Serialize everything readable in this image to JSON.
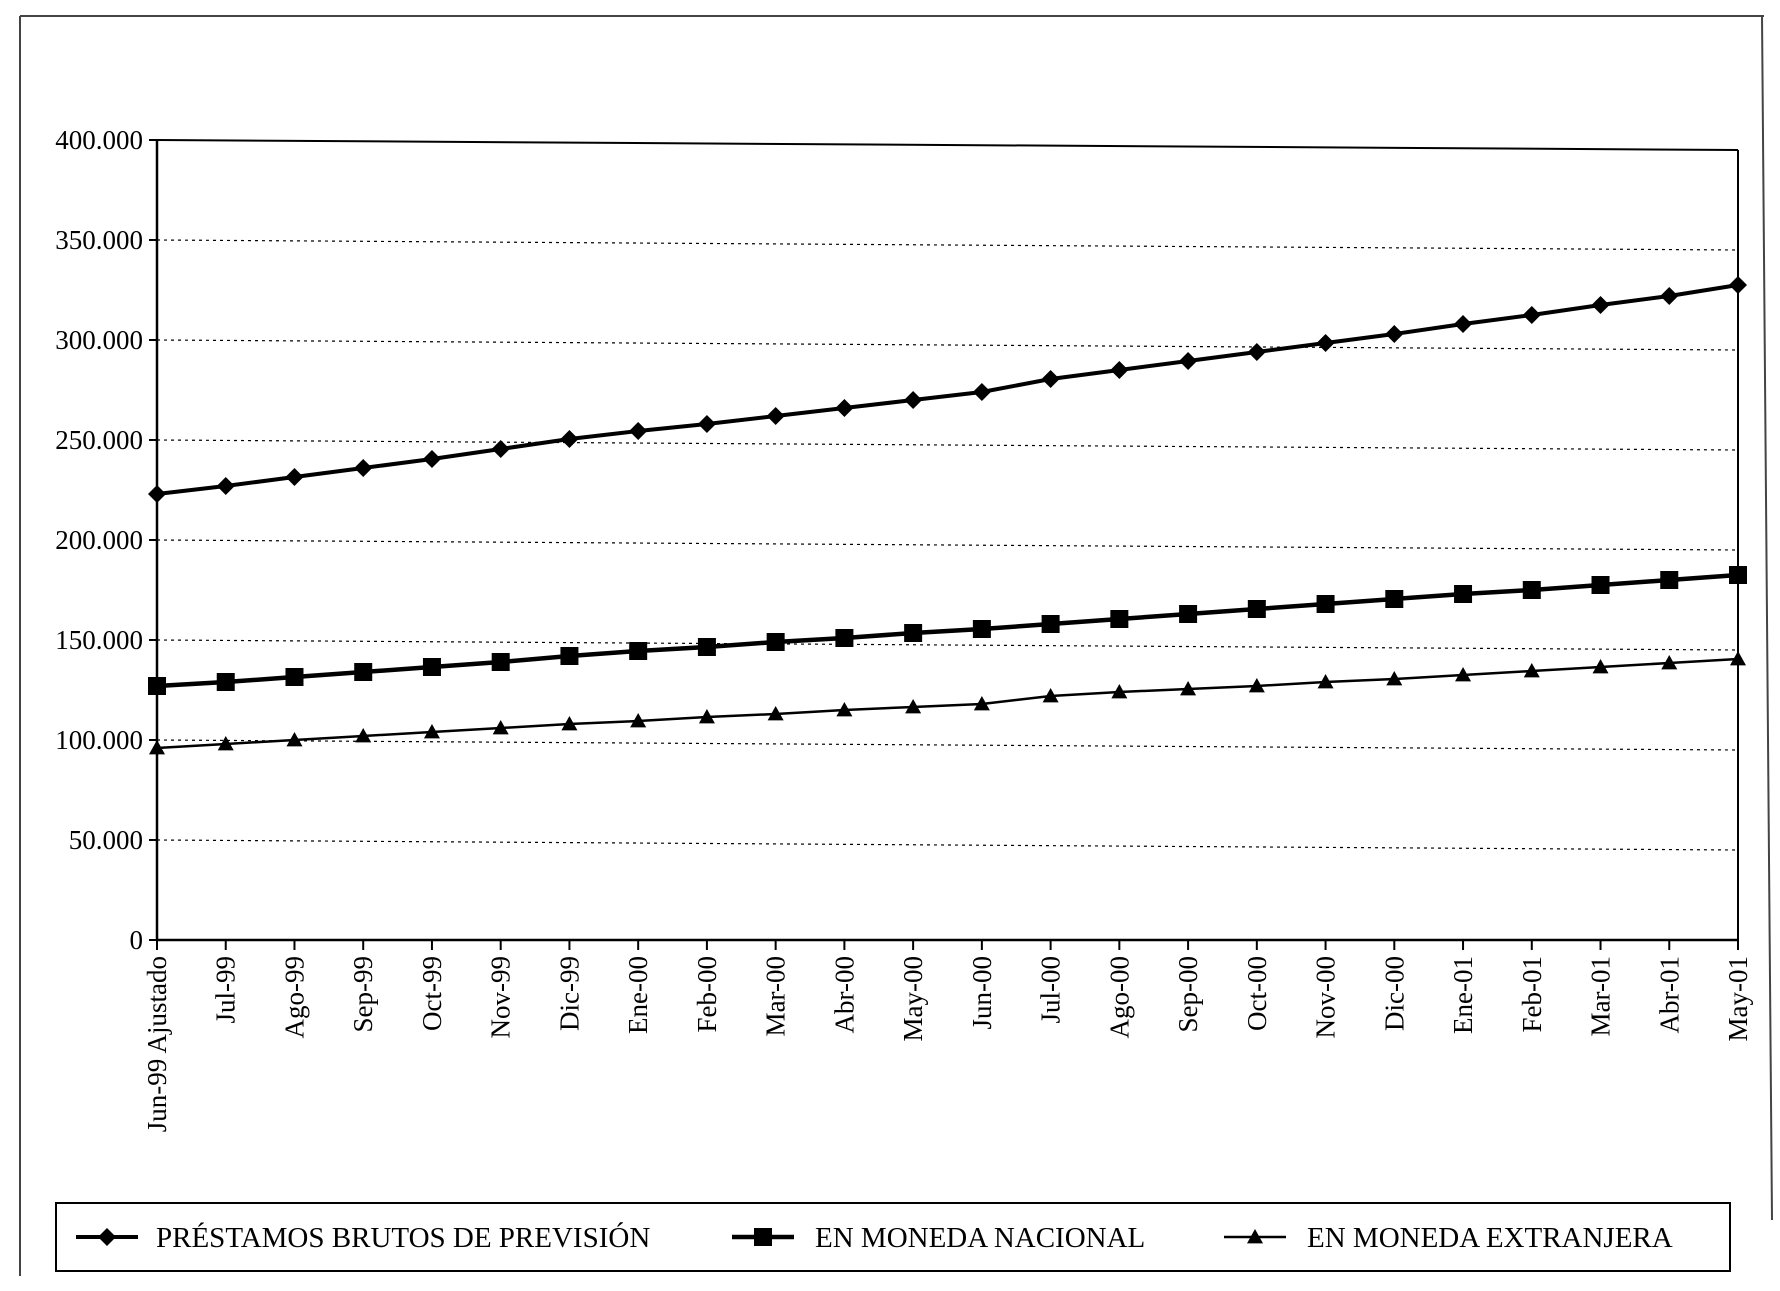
{
  "chart_data": {
    "type": "line",
    "title": "",
    "xlabel": "",
    "ylabel": "",
    "ylim": [
      0,
      400000
    ],
    "yticks": [
      0,
      50000,
      100000,
      150000,
      200000,
      250000,
      300000,
      350000,
      400000
    ],
    "ytick_labels": [
      "0",
      "50.000",
      "100.000",
      "150.000",
      "200.000",
      "250.000",
      "300.000",
      "350.000",
      "400.000"
    ],
    "grid": "horizontal-dotted",
    "legend_position": "bottom",
    "categories": [
      "Jun-99 Ajustado",
      "Jul-99",
      "Ago-99",
      "Sep-99",
      "Oct-99",
      "Nov-99",
      "Dic-99",
      "Ene-00",
      "Feb-00",
      "Mar-00",
      "Abr-00",
      "May-00",
      "Jun-00",
      "Jul-00",
      "Ago-00",
      "Sep-00",
      "Oct-00",
      "Nov-00",
      "Dic-00",
      "Ene-01",
      "Feb-01",
      "Mar-01",
      "Abr-01",
      "May-01"
    ],
    "series": [
      {
        "name": "PRÉSTAMOS BRUTOS DE PREVISIÓN",
        "marker": "diamond",
        "values": [
          223000,
          227000,
          231500,
          236000,
          240500,
          245500,
          250500,
          254500,
          258000,
          262000,
          266000,
          270000,
          274000,
          280500,
          285000,
          289500,
          294000,
          298500,
          303000,
          308000,
          312500,
          317500,
          322000,
          327500
        ]
      },
      {
        "name": "EN MONEDA NACIONAL",
        "marker": "square",
        "values": [
          127000,
          129000,
          131500,
          134000,
          136500,
          139000,
          142000,
          144500,
          146500,
          149000,
          151000,
          153500,
          155500,
          158000,
          160500,
          163000,
          165500,
          168000,
          170500,
          173000,
          175000,
          177500,
          180000,
          182500
        ]
      },
      {
        "name": "EN MONEDA EXTRANJERA",
        "marker": "triangle",
        "values": [
          96000,
          98000,
          100000,
          102000,
          104000,
          106000,
          108000,
          109500,
          111500,
          113000,
          115000,
          116500,
          118000,
          122000,
          124000,
          125500,
          127000,
          129000,
          130500,
          132500,
          134500,
          136500,
          138500,
          140500
        ]
      }
    ]
  }
}
